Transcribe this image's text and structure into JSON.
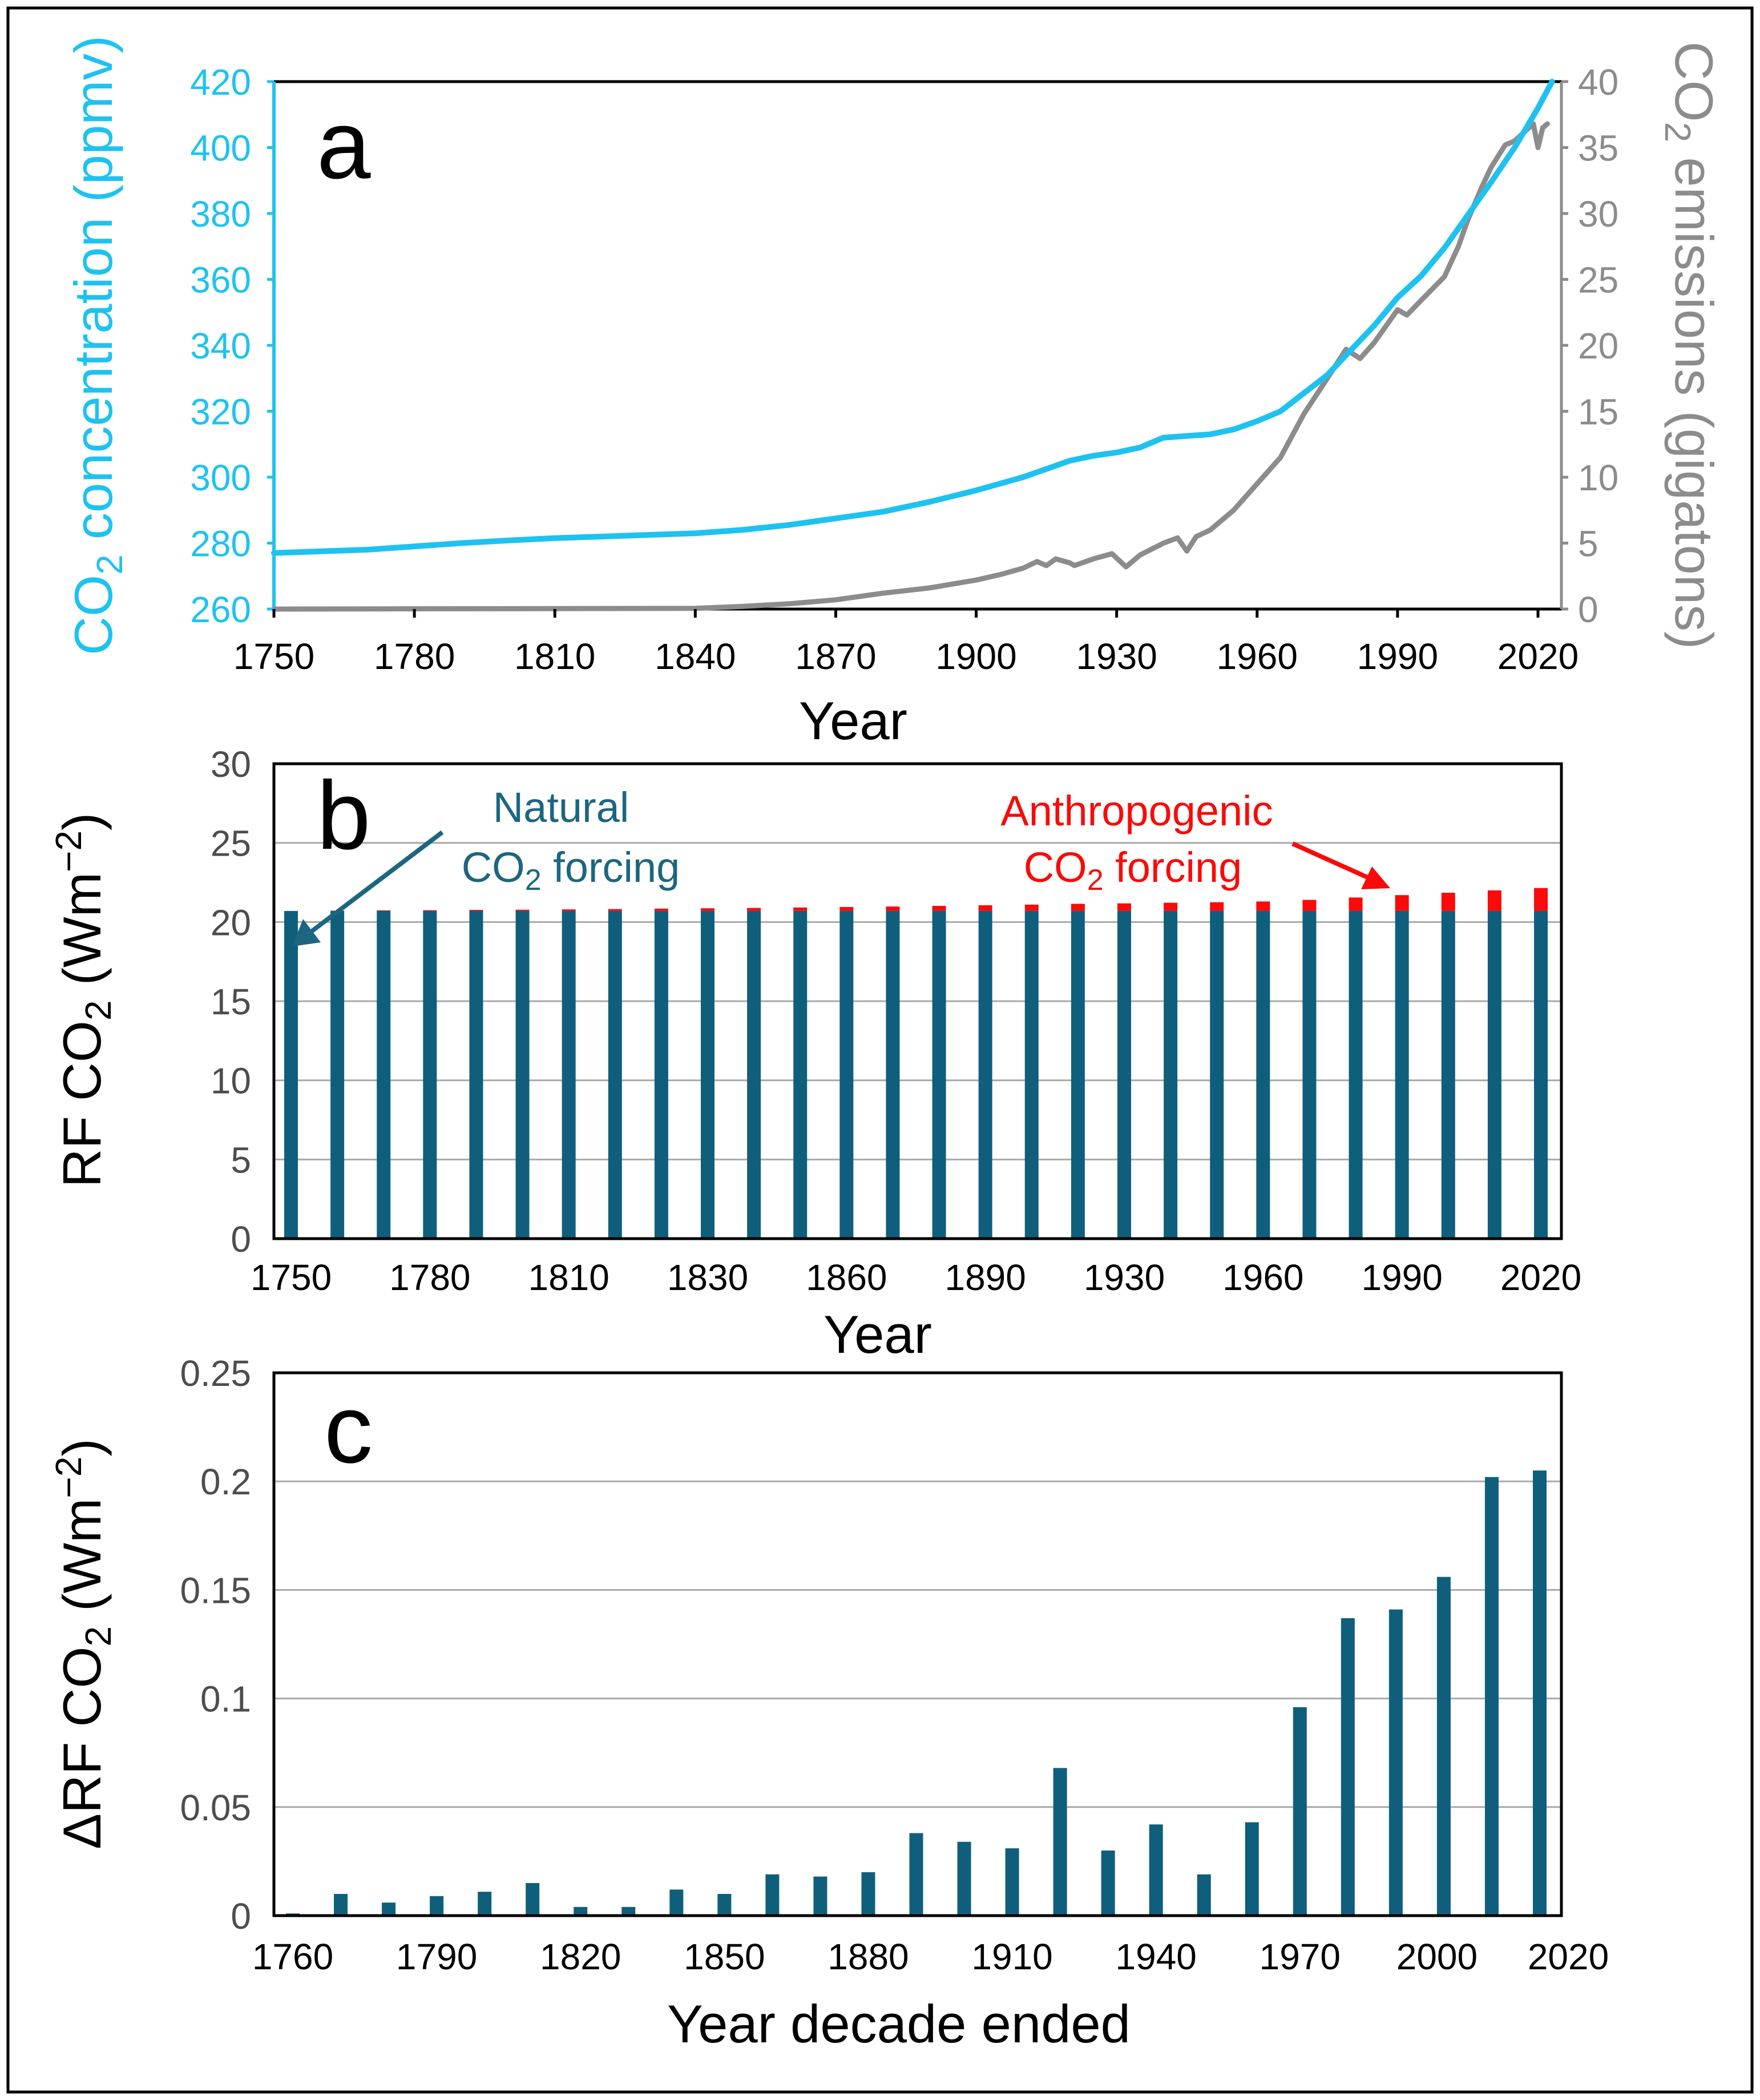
{
  "colors": {
    "co2_concentration": "#1ec2f0",
    "co2_emissions": "#8c8c8c",
    "natural": "#0f5f7c",
    "anthropogenic": "#fa0a0a",
    "axis_text": "#4d4d4d",
    "annot_natural": "#1c6680",
    "annot_anthro": "#fa0a0a",
    "grid": "#a9a9a9",
    "frame": "#000000"
  },
  "chart_data": [
    {
      "id": "a",
      "type": "line",
      "panel_label": "a",
      "xlabel": "Year",
      "xlim": [
        1750,
        2025
      ],
      "x_ticks": [
        "1750",
        "1780",
        "1810",
        "1840",
        "1870",
        "1900",
        "1930",
        "1960",
        "1990",
        "2020"
      ],
      "ylabel_left": {
        "pre": "CO",
        "sub": "2",
        "post": " concentration (ppmv)"
      },
      "ylim_left": [
        260,
        420
      ],
      "y_ticks_left": [
        "260",
        "280",
        "300",
        "320",
        "340",
        "360",
        "380",
        "400",
        "420"
      ],
      "ylabel_right": {
        "pre": "CO",
        "sub": "2",
        "post": " emissions (gigatons)"
      },
      "ylim_right": [
        0,
        40
      ],
      "y_ticks_right": [
        "0",
        "5",
        "10",
        "15",
        "20",
        "25",
        "30",
        "35",
        "40"
      ],
      "series": [
        {
          "name": "CO2 concentration",
          "axis": "left",
          "x": [
            1750,
            1760,
            1770,
            1780,
            1790,
            1800,
            1810,
            1820,
            1830,
            1840,
            1850,
            1860,
            1870,
            1880,
            1890,
            1900,
            1910,
            1915,
            1920,
            1925,
            1930,
            1935,
            1940,
            1945,
            1950,
            1955,
            1960,
            1965,
            1970,
            1975,
            1980,
            1985,
            1990,
            1995,
            2000,
            2005,
            2010,
            2015,
            2020,
            2023
          ],
          "y": [
            277,
            277.5,
            278,
            279,
            280,
            280.8,
            281.5,
            282,
            282.5,
            283,
            284,
            285.5,
            287.5,
            289.5,
            292.5,
            296,
            300,
            302.5,
            305,
            306.5,
            307.5,
            309,
            312,
            312.5,
            313,
            314.5,
            317,
            320,
            325.5,
            331,
            338.5,
            346,
            354.5,
            361,
            369.5,
            379.5,
            389.5,
            400,
            412,
            420
          ]
        },
        {
          "name": "CO2 emissions",
          "axis": "right",
          "x": [
            1750,
            1840,
            1850,
            1860,
            1870,
            1880,
            1890,
            1900,
            1905,
            1910,
            1913,
            1915,
            1917,
            1920,
            1921,
            1925,
            1929,
            1932,
            1935,
            1940,
            1943,
            1945,
            1947,
            1950,
            1955,
            1960,
            1965,
            1970,
            1975,
            1979,
            1982,
            1985,
            1990,
            1992,
            1995,
            2000,
            2003,
            2005,
            2008,
            2010,
            2013,
            2015,
            2019,
            2020,
            2021,
            2022
          ],
          "y": [
            0,
            0.05,
            0.2,
            0.4,
            0.7,
            1.2,
            1.6,
            2.2,
            2.6,
            3.1,
            3.6,
            3.3,
            3.8,
            3.5,
            3.3,
            3.8,
            4.2,
            3.2,
            4.1,
            5.0,
            5.4,
            4.4,
            5.5,
            6.0,
            7.5,
            9.5,
            11.5,
            14.8,
            17.5,
            19.7,
            19.0,
            20.2,
            22.7,
            22.3,
            23.4,
            25.2,
            27.5,
            29.5,
            32.0,
            33.5,
            35.2,
            35.5,
            36.8,
            35.0,
            36.5,
            36.8
          ]
        }
      ]
    },
    {
      "id": "b",
      "type": "bar",
      "stacked": true,
      "panel_label": "b",
      "xlabel": "Year",
      "ylabel": {
        "pre": "RF CO",
        "sub": "2",
        "post": " (Wm",
        "sup": "−2",
        "end": ")"
      },
      "ylim": [
        0,
        30
      ],
      "y_ticks": [
        "0",
        "5",
        "10",
        "15",
        "20",
        "25",
        "30"
      ],
      "grid": true,
      "categories": [
        1750,
        1760,
        1770,
        1780,
        1790,
        1800,
        1810,
        1820,
        1830,
        1840,
        1850,
        1860,
        1870,
        1880,
        1890,
        1900,
        1910,
        1920,
        1930,
        1940,
        1950,
        1960,
        1970,
        1980,
        1990,
        2000,
        2010,
        2020
      ],
      "x_tick_labels": [
        "1750",
        "1780",
        "1810",
        "1830",
        "1860",
        "1890",
        "1930",
        "1960",
        "1990",
        "2020"
      ],
      "series": [
        {
          "name": "Natural CO2 forcing",
          "values": [
            20.7,
            20.7,
            20.7,
            20.7,
            20.7,
            20.7,
            20.7,
            20.7,
            20.7,
            20.7,
            20.7,
            20.7,
            20.7,
            20.7,
            20.7,
            20.7,
            20.7,
            20.7,
            20.7,
            20.7,
            20.7,
            20.7,
            20.7,
            20.7,
            20.7,
            20.7,
            20.7,
            20.7
          ]
        },
        {
          "name": "Anthropogenic CO2 forcing",
          "values": [
            0.0,
            0.02,
            0.04,
            0.05,
            0.07,
            0.08,
            0.1,
            0.12,
            0.15,
            0.17,
            0.19,
            0.22,
            0.25,
            0.28,
            0.32,
            0.36,
            0.4,
            0.45,
            0.48,
            0.52,
            0.55,
            0.6,
            0.7,
            0.85,
            1.0,
            1.15,
            1.3,
            1.45
          ]
        }
      ],
      "annotations": {
        "natural_line1": "Natural",
        "natural_line2": {
          "pre": "CO",
          "sub": "2",
          "post": " forcing"
        },
        "anthro_line1": "Anthropogenic",
        "anthro_line2": {
          "pre": "CO",
          "sub": "2",
          "post": " forcing"
        }
      }
    },
    {
      "id": "c",
      "type": "bar",
      "panel_label": "c",
      "xlabel": "Year decade ended",
      "ylabel": {
        "pre": "ΔRF CO",
        "sub": "2",
        "post": " (Wm",
        "sup": "−2",
        "end": ")"
      },
      "ylim": [
        0,
        0.25
      ],
      "y_ticks": [
        "0",
        "0.05",
        "0.1",
        "0.15",
        "0.2",
        "0.25"
      ],
      "grid": true,
      "categories": [
        1760,
        1770,
        1780,
        1790,
        1800,
        1810,
        1820,
        1830,
        1840,
        1850,
        1860,
        1870,
        1880,
        1890,
        1900,
        1910,
        1920,
        1930,
        1940,
        1950,
        1960,
        1970,
        1980,
        1990,
        2000,
        2010,
        2020
      ],
      "values": [
        0.001,
        0.01,
        0.006,
        0.009,
        0.011,
        0.015,
        0.004,
        0.004,
        0.012,
        0.01,
        0.019,
        0.018,
        0.02,
        0.038,
        0.034,
        0.031,
        0.068,
        0.03,
        0.042,
        0.019,
        0.043,
        0.096,
        0.137,
        0.141,
        0.156,
        0.202,
        0.205
      ],
      "x_tick_labels": [
        "1760",
        "1790",
        "1820",
        "1850",
        "1880",
        "1910",
        "1940",
        "1970",
        "2000",
        "2020"
      ]
    }
  ]
}
